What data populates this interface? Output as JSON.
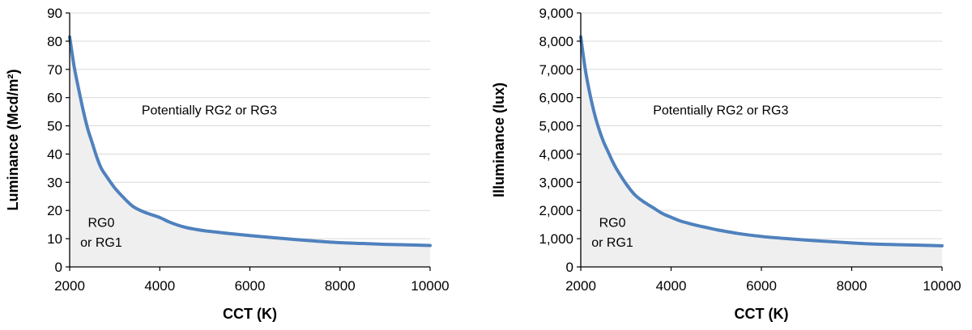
{
  "chart_data": [
    {
      "type": "area",
      "title": "",
      "xlabel": "CCT (K)",
      "ylabel": "Luminance (Mcd/m²)",
      "xlim": [
        2000,
        10000
      ],
      "ylim": [
        0,
        90
      ],
      "x_ticks": [
        2000,
        4000,
        6000,
        8000,
        10000
      ],
      "x_tick_labels": [
        "2000",
        "4000",
        "6000",
        "8000",
        "10000"
      ],
      "y_ticks": [
        0,
        10,
        20,
        30,
        40,
        50,
        60,
        70,
        80,
        90
      ],
      "y_tick_labels": [
        "0",
        "10",
        "20",
        "30",
        "40",
        "50",
        "60",
        "70",
        "80",
        "90"
      ],
      "grid": true,
      "line_color": "#4f81bd",
      "fill_color": "#efefef",
      "series": [
        {
          "x": [
            2000,
            2100,
            2200,
            2300,
            2400,
            2500,
            2600,
            2700,
            2800,
            3000,
            3200,
            3400,
            3600,
            3800,
            4000,
            4200,
            4400,
            4600,
            4800,
            5000,
            5500,
            6000,
            6500,
            7000,
            7500,
            8000,
            8500,
            9000,
            9500,
            10000
          ],
          "y": [
            81.5,
            71,
            63,
            55.5,
            49,
            44,
            39,
            35,
            32.5,
            28,
            24.5,
            21.5,
            19.8,
            18.6,
            17.5,
            16,
            14.8,
            13.9,
            13.3,
            12.8,
            11.9,
            11.1,
            10.4,
            9.7,
            9.1,
            8.6,
            8.3,
            8.0,
            7.8,
            7.6
          ]
        }
      ],
      "annotations": [
        {
          "text": "Potentially RG2 or RG3",
          "x": 5100,
          "y": 54
        },
        {
          "text": "RG0",
          "x": 2700,
          "y": 14.2
        },
        {
          "text": "or RG1",
          "x": 2700,
          "y": 7.2
        }
      ]
    },
    {
      "type": "area",
      "title": "",
      "xlabel": "CCT (K)",
      "ylabel": "Illuminance (lux)",
      "xlim": [
        2000,
        10000
      ],
      "ylim": [
        0,
        9000
      ],
      "x_ticks": [
        2000,
        4000,
        6000,
        8000,
        10000
      ],
      "x_tick_labels": [
        "2000",
        "4000",
        "6000",
        "8000",
        "10000"
      ],
      "y_ticks": [
        0,
        1000,
        2000,
        3000,
        4000,
        5000,
        6000,
        7000,
        8000,
        9000
      ],
      "y_tick_labels": [
        "0",
        "1,000",
        "2,000",
        "3,000",
        "4,000",
        "5,000",
        "6,000",
        "7,000",
        "8,000",
        "9,000"
      ],
      "grid": true,
      "line_color": "#4f81bd",
      "fill_color": "#efefef",
      "series": [
        {
          "x": [
            2000,
            2100,
            2200,
            2300,
            2400,
            2500,
            2600,
            2700,
            2800,
            3000,
            3200,
            3400,
            3600,
            3800,
            4000,
            4200,
            4400,
            4600,
            4800,
            5000,
            5500,
            6000,
            6500,
            7000,
            7500,
            8000,
            8500,
            9000,
            9500,
            10000
          ],
          "y": [
            8150,
            7000,
            6150,
            5450,
            4900,
            4450,
            4100,
            3750,
            3450,
            2950,
            2550,
            2300,
            2100,
            1900,
            1760,
            1630,
            1540,
            1460,
            1390,
            1320,
            1180,
            1080,
            1010,
            950,
            900,
            850,
            810,
            790,
            770,
            750
          ]
        }
      ],
      "annotations": [
        {
          "text": "Potentially RG2 or RG3",
          "x": 5100,
          "y": 5400
        },
        {
          "text": "RG0",
          "x": 2700,
          "y": 1420
        },
        {
          "text": "or RG1",
          "x": 2700,
          "y": 720
        }
      ]
    }
  ]
}
